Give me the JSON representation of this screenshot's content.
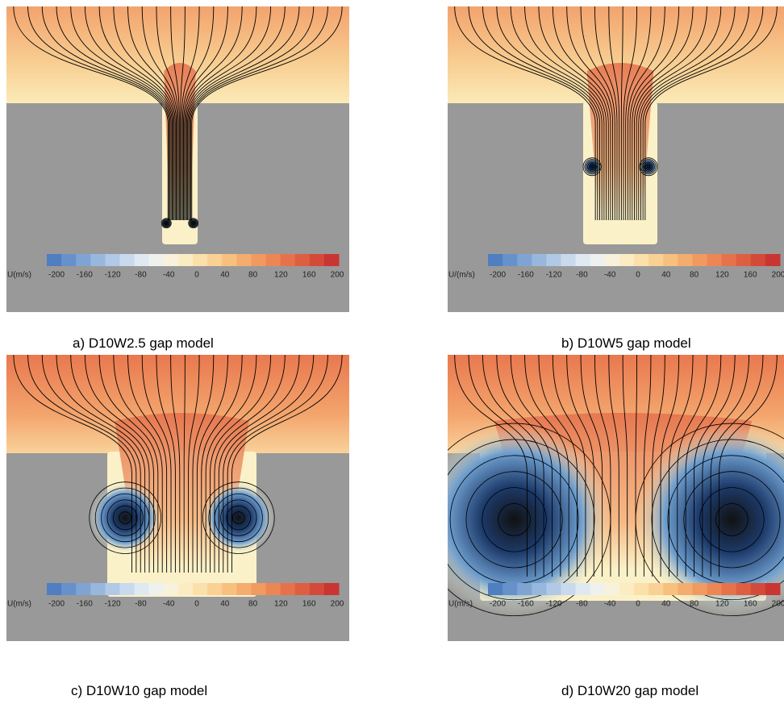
{
  "panels": [
    {
      "caption": "a) D10W2.5 gap model",
      "colorbar": {
        "label": "U(m/s)",
        "ticks": [
          -200,
          -160,
          -120,
          -80,
          -40,
          0,
          40,
          80,
          120,
          160,
          200
        ]
      }
    },
    {
      "caption": "b) D10W5 gap model",
      "colorbar": {
        "label": "U/(m/s)",
        "ticks": [
          -200,
          -160,
          -120,
          -80,
          -40,
          0,
          40,
          80,
          120,
          160,
          200
        ]
      }
    },
    {
      "caption": "c) D10W10 gap model",
      "colorbar": {
        "label": "U(m/s)",
        "ticks": [
          -200,
          -160,
          -120,
          -80,
          -40,
          0,
          40,
          80,
          120,
          160,
          200
        ]
      }
    },
    {
      "caption": "d) D10W20 gap model",
      "colorbar": {
        "label": "U(m/s)",
        "ticks": [
          -200,
          -160,
          -120,
          -80,
          -40,
          0,
          40,
          80,
          120,
          160,
          200
        ]
      }
    }
  ]
}
